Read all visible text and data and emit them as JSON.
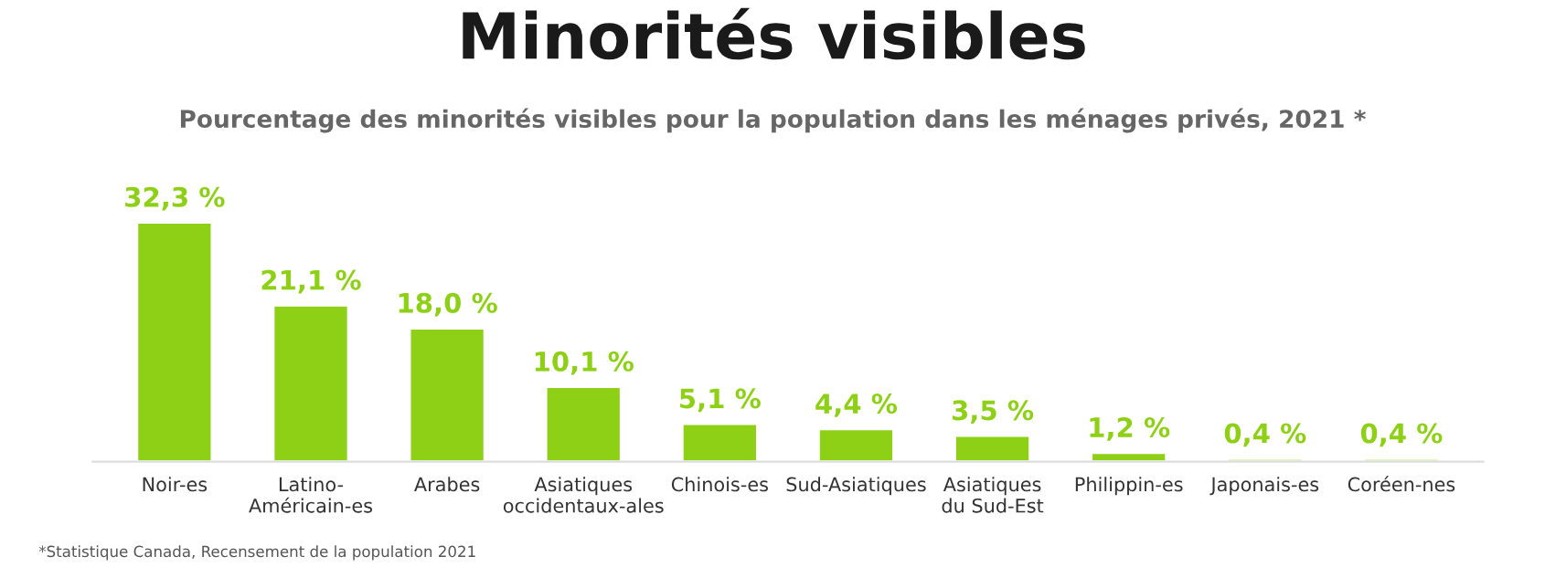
{
  "chart_data": {
    "type": "bar",
    "title": "Minorités visibles",
    "subtitle": "Pourcentage des minorités visibles pour la population dans les ménages privés, 2021 *",
    "categories": [
      "Noir-es",
      "Latino-\nAméricain-es",
      "Arabes",
      "Asiatiques\noccidentaux-ales",
      "Chinois-es",
      "Sud-Asiatiques",
      "Asiatiques\ndu Sud-Est",
      "Philippin-es",
      "Japonais-es",
      "Coréen-nes"
    ],
    "values": [
      32.3,
      21.1,
      18.0,
      10.1,
      5.1,
      4.4,
      3.5,
      1.2,
      0.4,
      0.4
    ],
    "value_labels": [
      "32,3 %",
      "21,1 %",
      "18,0 %",
      "10,1 %",
      "5,1 %",
      "4,4 %",
      "3,5 %",
      "1,2 %",
      "0,4 %",
      "0,4 %"
    ],
    "color": "#8dd016",
    "annotations": [
      "*Statistique Canada, Recensement de la population 2021"
    ],
    "grid": false,
    "legend": false
  }
}
